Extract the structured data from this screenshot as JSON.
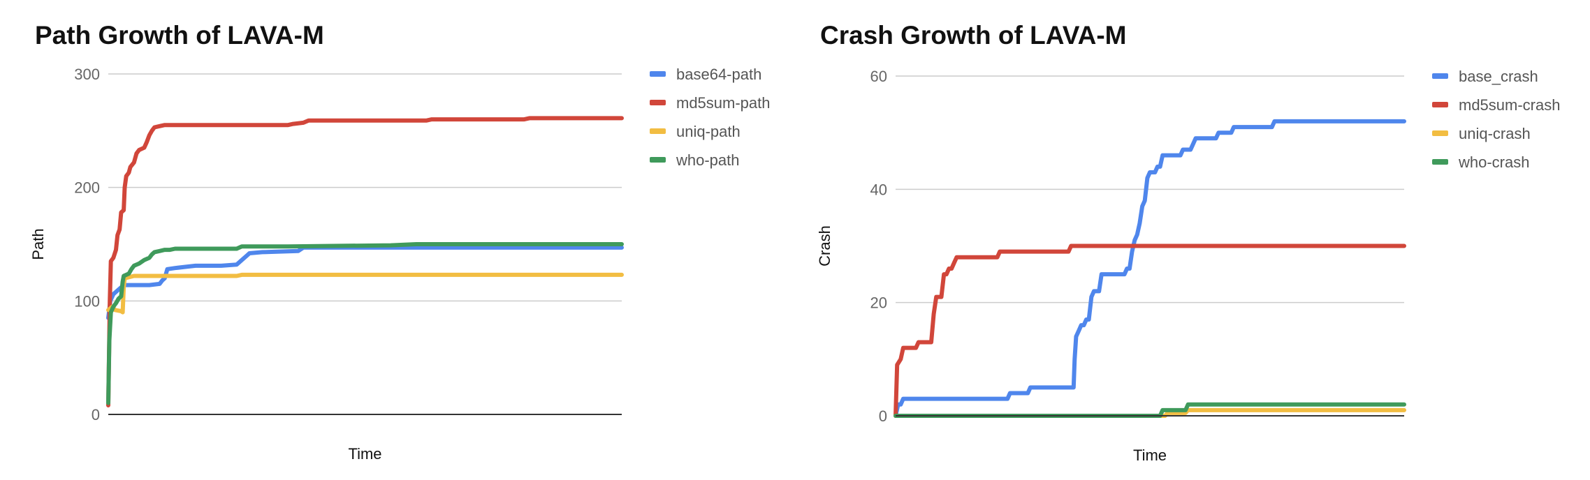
{
  "colors": {
    "blue": "#4f86ec",
    "red": "#d1463a",
    "yellow": "#f2bd42",
    "green": "#3f9a5b",
    "grid": "#cccccc",
    "axis": "#333333"
  },
  "chart_data": [
    {
      "type": "line",
      "title": "Path Growth of LAVA-M",
      "xlabel": "Time",
      "ylabel": "Path",
      "ylim": [
        0,
        300
      ],
      "yticks": [
        0,
        100,
        200,
        300
      ],
      "xlim": [
        0,
        100
      ],
      "grid": true,
      "legend_position": "right",
      "series": [
        {
          "name": "base64-path",
          "color": "#4f86ec",
          "points": [
            [
              0,
              85
            ],
            [
              0.4,
              100
            ],
            [
              1,
              106
            ],
            [
              2,
              110
            ],
            [
              3,
              114
            ],
            [
              8,
              114
            ],
            [
              10,
              115
            ],
            [
              10.5,
              118
            ],
            [
              11,
              120
            ],
            [
              11.5,
              128
            ],
            [
              13,
              129
            ],
            [
              15,
              130
            ],
            [
              17,
              131
            ],
            [
              22,
              131
            ],
            [
              25,
              132
            ],
            [
              26,
              136
            ],
            [
              27,
              140
            ],
            [
              27.5,
              142
            ],
            [
              30,
              143
            ],
            [
              37,
              144
            ],
            [
              38,
              147
            ],
            [
              100,
              147
            ]
          ]
        },
        {
          "name": "md5sum-path",
          "color": "#d1463a",
          "points": [
            [
              0,
              8
            ],
            [
              0.3,
              100
            ],
            [
              0.5,
              135
            ],
            [
              1,
              138
            ],
            [
              1.5,
              145
            ],
            [
              1.8,
              158
            ],
            [
              2.2,
              163
            ],
            [
              2.5,
              178
            ],
            [
              3,
              180
            ],
            [
              3.2,
              200
            ],
            [
              3.5,
              210
            ],
            [
              4,
              213
            ],
            [
              4.3,
              218
            ],
            [
              5,
              222
            ],
            [
              5.5,
              230
            ],
            [
              6,
              233
            ],
            [
              7,
              235
            ],
            [
              7.5,
              240
            ],
            [
              8,
              246
            ],
            [
              8.5,
              250
            ],
            [
              9,
              253
            ],
            [
              10,
              254
            ],
            [
              11,
              255
            ],
            [
              35,
              255
            ],
            [
              36,
              256
            ],
            [
              38,
              257
            ],
            [
              39,
              259
            ],
            [
              62,
              259
            ],
            [
              63,
              260
            ],
            [
              81,
              260
            ],
            [
              82,
              261
            ],
            [
              100,
              261
            ]
          ]
        },
        {
          "name": "uniq-path",
          "color": "#f2bd42",
          "points": [
            [
              0,
              92
            ],
            [
              0.8,
              95
            ],
            [
              1.3,
              92
            ],
            [
              2.5,
              91
            ],
            [
              2.8,
              90
            ],
            [
              3,
              112
            ],
            [
              3.2,
              120
            ],
            [
              5,
              122
            ],
            [
              25,
              122
            ],
            [
              26,
              123
            ],
            [
              100,
              123
            ]
          ]
        },
        {
          "name": "who-path",
          "color": "#3f9a5b",
          "points": [
            [
              0,
              10
            ],
            [
              0.2,
              65
            ],
            [
              0.5,
              90
            ],
            [
              1,
              95
            ],
            [
              1.5,
              98
            ],
            [
              2,
              102
            ],
            [
              2.5,
              104
            ],
            [
              2.8,
              117
            ],
            [
              3,
              122
            ],
            [
              4,
              124
            ],
            [
              4.5,
              128
            ],
            [
              5,
              131
            ],
            [
              6,
              133
            ],
            [
              7,
              136
            ],
            [
              8,
              138
            ],
            [
              8.5,
              141
            ],
            [
              9,
              143
            ],
            [
              10,
              144
            ],
            [
              11,
              145
            ],
            [
              12,
              145
            ],
            [
              13,
              146
            ],
            [
              25,
              146
            ],
            [
              26,
              148
            ],
            [
              35,
              148
            ],
            [
              55,
              149
            ],
            [
              60,
              150
            ],
            [
              100,
              150
            ]
          ]
        }
      ]
    },
    {
      "type": "line",
      "title": "Crash Growth of LAVA-M",
      "xlabel": "Time",
      "ylabel": "Crash",
      "ylim": [
        0,
        60
      ],
      "yticks": [
        0,
        20,
        40,
        60
      ],
      "xlim": [
        0,
        100
      ],
      "grid": true,
      "legend_position": "right",
      "series": [
        {
          "name": "base_crash",
          "color": "#4f86ec",
          "points": [
            [
              0,
              0
            ],
            [
              0.5,
              2
            ],
            [
              1,
              2
            ],
            [
              1.5,
              3
            ],
            [
              22,
              3
            ],
            [
              22.5,
              4
            ],
            [
              26,
              4
            ],
            [
              26.5,
              5
            ],
            [
              35,
              5
            ],
            [
              35.2,
              10
            ],
            [
              35.5,
              14
            ],
            [
              36,
              15
            ],
            [
              36.5,
              16
            ],
            [
              37,
              16
            ],
            [
              37.5,
              17
            ],
            [
              38,
              17
            ],
            [
              38.5,
              21
            ],
            [
              39,
              22
            ],
            [
              40,
              22
            ],
            [
              40.5,
              25
            ],
            [
              45,
              25
            ],
            [
              45.5,
              26
            ],
            [
              46,
              26
            ],
            [
              46.5,
              29
            ],
            [
              47,
              31
            ],
            [
              47.5,
              32
            ],
            [
              48,
              34
            ],
            [
              48.5,
              37
            ],
            [
              49,
              38
            ],
            [
              49.5,
              42
            ],
            [
              50,
              43
            ],
            [
              51,
              43
            ],
            [
              51.5,
              44
            ],
            [
              52,
              44
            ],
            [
              52.5,
              46
            ],
            [
              56,
              46
            ],
            [
              56.5,
              47
            ],
            [
              58,
              47
            ],
            [
              58.5,
              48
            ],
            [
              59,
              49
            ],
            [
              63,
              49
            ],
            [
              63.5,
              50
            ],
            [
              66,
              50
            ],
            [
              66.5,
              51
            ],
            [
              74,
              51
            ],
            [
              74.5,
              52
            ],
            [
              100,
              52
            ]
          ]
        },
        {
          "name": "md5sum-crash",
          "color": "#d1463a",
          "points": [
            [
              0,
              0
            ],
            [
              0.3,
              9
            ],
            [
              1,
              10
            ],
            [
              1.5,
              12
            ],
            [
              4,
              12
            ],
            [
              4.5,
              13
            ],
            [
              7,
              13
            ],
            [
              7.5,
              18
            ],
            [
              8,
              21
            ],
            [
              9,
              21
            ],
            [
              9.5,
              25
            ],
            [
              10,
              25
            ],
            [
              10.5,
              26
            ],
            [
              11,
              26
            ],
            [
              11.5,
              27
            ],
            [
              12,
              28
            ],
            [
              20,
              28
            ],
            [
              20.5,
              29
            ],
            [
              34,
              29
            ],
            [
              34.5,
              30
            ],
            [
              100,
              30
            ]
          ]
        },
        {
          "name": "uniq-crash",
          "color": "#f2bd42",
          "points": [
            [
              0,
              0
            ],
            [
              53,
              0
            ],
            [
              53.5,
              0.5
            ],
            [
              57,
              0.5
            ],
            [
              57.5,
              1
            ],
            [
              100,
              1
            ]
          ]
        },
        {
          "name": "who-crash",
          "color": "#3f9a5b",
          "points": [
            [
              0,
              0
            ],
            [
              52,
              0
            ],
            [
              52.5,
              1
            ],
            [
              57,
              1
            ],
            [
              57.5,
              2
            ],
            [
              100,
              2
            ]
          ]
        }
      ]
    }
  ]
}
